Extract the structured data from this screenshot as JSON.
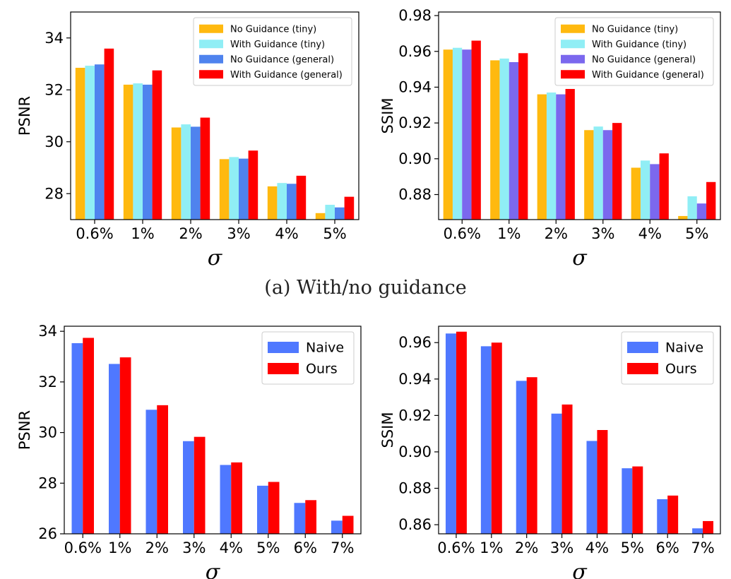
{
  "caption": "(a) With/no guidance",
  "chart_data": [
    {
      "id": "a-psnr",
      "type": "bar",
      "categories": [
        "0.6%",
        "1%",
        "2%",
        "3%",
        "4%",
        "5%"
      ],
      "xlabel": "σ",
      "ylabel": "PSNR",
      "ylim": [
        27,
        35
      ],
      "yticks": [
        28,
        30,
        32,
        34
      ],
      "ytick_decimals": 0,
      "legend_position": "top-right",
      "legend_size": "small",
      "series": [
        {
          "name": "No Guidance (tiny)",
          "color": "#FFB90F",
          "values": [
            32.85,
            32.2,
            30.55,
            29.33,
            28.28,
            27.25
          ]
        },
        {
          "name": "With Guidance (tiny)",
          "color": "#90EEF5",
          "values": [
            32.93,
            32.25,
            30.67,
            29.41,
            28.41,
            27.57
          ]
        },
        {
          "name": "No Guidance (general)",
          "color": "#4F83EE",
          "values": [
            32.98,
            32.2,
            30.58,
            29.35,
            28.38,
            27.47
          ]
        },
        {
          "name": "With Guidance (general)",
          "color": "#FF0000",
          "values": [
            33.59,
            32.75,
            30.93,
            29.66,
            28.69,
            27.88
          ]
        }
      ]
    },
    {
      "id": "a-ssim",
      "type": "bar",
      "categories": [
        "0.6%",
        "1%",
        "2%",
        "3%",
        "4%",
        "5%"
      ],
      "xlabel": "σ",
      "ylabel": "SSIM",
      "ylim": [
        0.866,
        0.982
      ],
      "yticks": [
        0.88,
        0.9,
        0.92,
        0.94,
        0.96,
        0.98
      ],
      "ytick_decimals": 2,
      "legend_position": "top-right",
      "legend_size": "small",
      "series": [
        {
          "name": "No Guidance (tiny)",
          "color": "#FFB90F",
          "values": [
            0.961,
            0.955,
            0.936,
            0.916,
            0.895,
            0.868
          ]
        },
        {
          "name": "With Guidance (tiny)",
          "color": "#90EEF5",
          "values": [
            0.962,
            0.956,
            0.937,
            0.918,
            0.899,
            0.879
          ]
        },
        {
          "name": "No Guidance (general)",
          "color": "#7B68EE",
          "values": [
            0.961,
            0.954,
            0.936,
            0.916,
            0.897,
            0.875
          ]
        },
        {
          "name": "With Guidance (general)",
          "color": "#FF0000",
          "values": [
            0.966,
            0.959,
            0.939,
            0.92,
            0.903,
            0.887
          ]
        }
      ]
    },
    {
      "id": "b-psnr",
      "type": "bar",
      "categories": [
        "0.6%",
        "1%",
        "2%",
        "3%",
        "4%",
        "5%",
        "6%",
        "7%"
      ],
      "xlabel": "σ",
      "ylabel": "PSNR",
      "ylim": [
        26,
        34.2
      ],
      "yticks": [
        26,
        28,
        30,
        32,
        34
      ],
      "ytick_decimals": 0,
      "legend_position": "top-right",
      "legend_size": "large",
      "series": [
        {
          "name": "Naive",
          "color": "#4F78FF",
          "values": [
            33.53,
            32.71,
            30.9,
            29.66,
            28.72,
            27.9,
            27.22,
            26.52
          ]
        },
        {
          "name": "Ours",
          "color": "#FF0000",
          "values": [
            33.74,
            32.97,
            31.08,
            29.83,
            28.82,
            28.05,
            27.33,
            26.71
          ]
        }
      ]
    },
    {
      "id": "b-ssim",
      "type": "bar",
      "categories": [
        "0.6%",
        "1%",
        "2%",
        "3%",
        "4%",
        "5%",
        "6%",
        "7%"
      ],
      "xlabel": "σ",
      "ylabel": "SSIM",
      "ylim": [
        0.855,
        0.969
      ],
      "yticks": [
        0.86,
        0.88,
        0.9,
        0.92,
        0.94,
        0.96
      ],
      "ytick_decimals": 2,
      "legend_position": "top-right",
      "legend_size": "large",
      "series": [
        {
          "name": "Naive",
          "color": "#4F78FF",
          "values": [
            0.965,
            0.958,
            0.939,
            0.921,
            0.906,
            0.891,
            0.874,
            0.858
          ]
        },
        {
          "name": "Ours",
          "color": "#FF0000",
          "values": [
            0.966,
            0.96,
            0.941,
            0.926,
            0.912,
            0.892,
            0.876,
            0.862
          ]
        }
      ]
    }
  ]
}
